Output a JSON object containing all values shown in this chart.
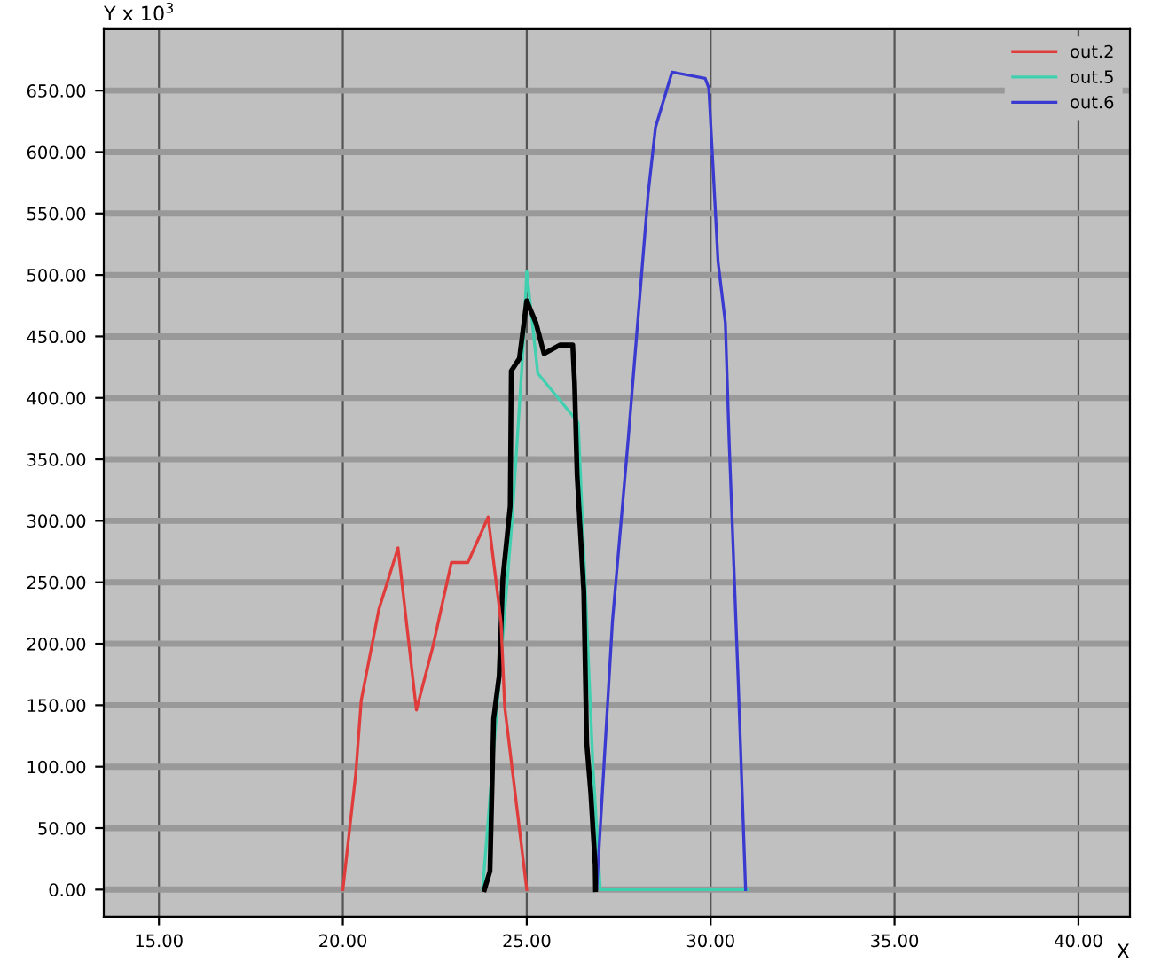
{
  "chart_data": {
    "type": "line",
    "xlabel": "X",
    "ylabel": "Y x 10$^{3}$",
    "xlim": [
      13.5,
      41.4
    ],
    "ylim": [
      -22,
      700
    ],
    "xticks": [
      {
        "value": 15,
        "label": "15.00"
      },
      {
        "value": 20,
        "label": "20.00"
      },
      {
        "value": 25,
        "label": "25.00"
      },
      {
        "value": 30,
        "label": "30.00"
      },
      {
        "value": 35,
        "label": "35.00"
      },
      {
        "value": 40,
        "label": "40.00"
      }
    ],
    "yticks": [
      {
        "value": 0,
        "label": "0.00"
      },
      {
        "value": 50,
        "label": "50.00"
      },
      {
        "value": 100,
        "label": "100.00"
      },
      {
        "value": 150,
        "label": "150.00"
      },
      {
        "value": 200,
        "label": "200.00"
      },
      {
        "value": 250,
        "label": "250.00"
      },
      {
        "value": 300,
        "label": "300.00"
      },
      {
        "value": 350,
        "label": "350.00"
      },
      {
        "value": 400,
        "label": "400.00"
      },
      {
        "value": 450,
        "label": "450.00"
      },
      {
        "value": 500,
        "label": "500.00"
      },
      {
        "value": 550,
        "label": "550.00"
      },
      {
        "value": 600,
        "label": "600.00"
      },
      {
        "value": 650,
        "label": "650.00"
      }
    ],
    "grid": true,
    "legend": "top right",
    "marker": "none",
    "line_style": "solid",
    "series": [
      {
        "name": "out.2",
        "color": "#e03c3c",
        "x": [
          20.0,
          20.35,
          20.5,
          20.98,
          21.5,
          22.0,
          22.45,
          22.95,
          23.4,
          23.95,
          24.3,
          24.4,
          25.0
        ],
        "values": [
          0,
          94,
          154,
          228,
          278,
          146,
          198,
          266,
          266,
          303,
          218,
          149,
          0
        ]
      },
      {
        "name": "out.5",
        "color": "#40d0b0",
        "x": [
          23.8,
          24.6,
          24.9,
          25.0,
          25.3,
          26.4,
          26.8,
          27.0,
          31.0
        ],
        "values": [
          0,
          300,
          440,
          503,
          420,
          380,
          100,
          0,
          0
        ]
      },
      {
        "name": "out.6",
        "color": "#3a3ad0",
        "x": [
          26.9,
          27.33,
          27.76,
          28.3,
          28.5,
          28.95,
          29.85,
          29.95,
          30.2,
          30.4,
          30.5,
          30.75,
          30.95
        ],
        "values": [
          0,
          218,
          367,
          566,
          620,
          665,
          660,
          652,
          511,
          461,
          367,
          169,
          0
        ]
      },
      {
        "color": "#000000",
        "x": [
          23.85,
          24.0,
          24.1,
          24.25,
          24.35,
          24.55,
          24.58,
          24.8,
          25.0,
          25.25,
          25.47,
          25.9,
          26.25,
          26.3,
          26.37,
          26.55,
          26.63,
          26.74,
          26.86,
          26.87
        ],
        "values": [
          0,
          15,
          139,
          174,
          253,
          312,
          422,
          432,
          479,
          461,
          436,
          443,
          443,
          412,
          337,
          243,
          119,
          79,
          20,
          0
        ]
      }
    ]
  }
}
